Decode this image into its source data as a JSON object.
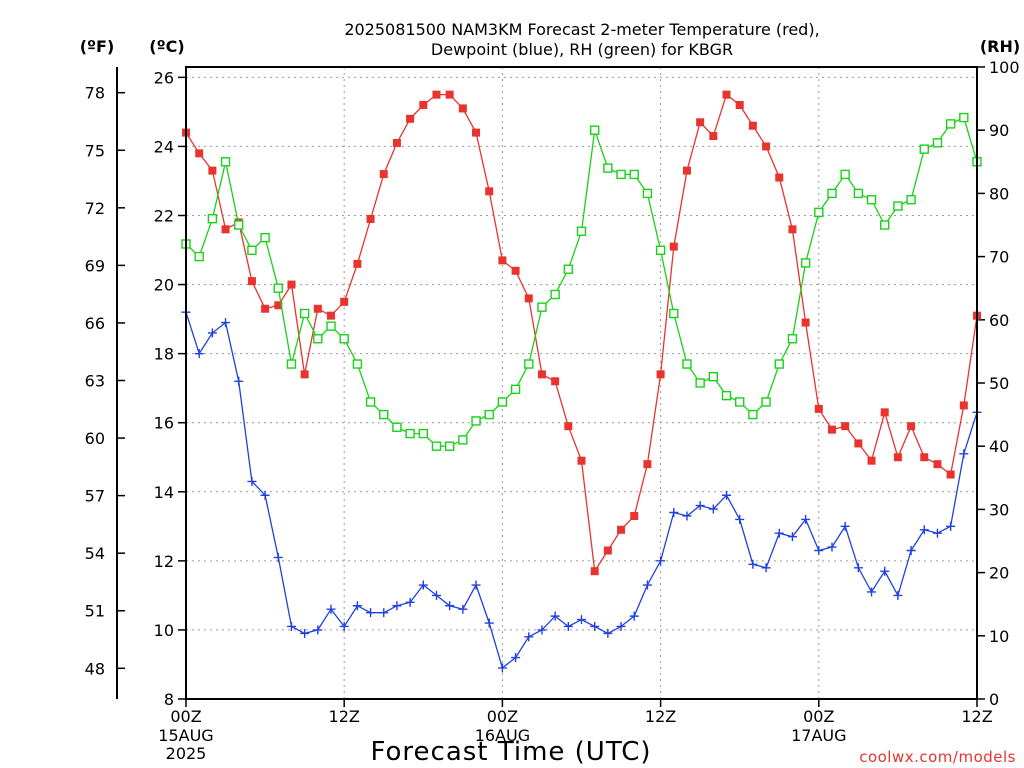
{
  "chart_data": {
    "type": "line",
    "title_line1": "2025081500 NAM3KM Forecast 2-meter Temperature (red),",
    "title_line2": "Dewpoint (blue), RH (green) for KBGR",
    "xlabel": "Forecast Time (UTC)",
    "credit": "coolwx.com/models",
    "unit_f": "(ºF)",
    "unit_c": "(ºC)",
    "unit_rh": "(RH)",
    "x_range": [
      0,
      60
    ],
    "c_range": [
      8,
      26.3
    ],
    "rh_range": [
      0,
      100
    ],
    "x_ticks": [
      {
        "hour": 0,
        "line1": "00Z",
        "line2": "15AUG",
        "line3": "2025"
      },
      {
        "hour": 12,
        "line1": "12Z",
        "line2": "",
        "line3": ""
      },
      {
        "hour": 24,
        "line1": "00Z",
        "line2": "16AUG",
        "line3": ""
      },
      {
        "hour": 36,
        "line1": "12Z",
        "line2": "",
        "line3": ""
      },
      {
        "hour": 48,
        "line1": "00Z",
        "line2": "17AUG",
        "line3": ""
      },
      {
        "hour": 60,
        "line1": "12Z",
        "line2": "",
        "line3": ""
      }
    ],
    "c_ticks": [
      "8",
      "10",
      "12",
      "14",
      "16",
      "18",
      "20",
      "22",
      "24",
      "26"
    ],
    "f_ticks": [
      {
        "label": "48",
        "f": 48
      },
      {
        "label": "51",
        "f": 51
      },
      {
        "label": "54",
        "f": 54
      },
      {
        "label": "57",
        "f": 57
      },
      {
        "label": "60",
        "f": 60
      },
      {
        "label": "63",
        "f": 63
      },
      {
        "label": "66",
        "f": 66
      },
      {
        "label": "69",
        "f": 69
      },
      {
        "label": "72",
        "f": 72
      },
      {
        "label": "75",
        "f": 75
      },
      {
        "label": "78",
        "f": 78
      }
    ],
    "rh_ticks": [
      "0",
      "10",
      "20",
      "30",
      "40",
      "50",
      "60",
      "70",
      "80",
      "90",
      "100"
    ],
    "series": [
      {
        "name": "Temperature",
        "color": "#e8332f",
        "marker": "filled-square",
        "axis": "c",
        "x": [
          0,
          1,
          2,
          3,
          4,
          5,
          6,
          7,
          8,
          9,
          10,
          11,
          12,
          13,
          14,
          15,
          16,
          17,
          18,
          19,
          20,
          21,
          22,
          23,
          24,
          25,
          26,
          27,
          28,
          29,
          30,
          31,
          32,
          33,
          34,
          35,
          36,
          37,
          38,
          39,
          40,
          41,
          42,
          43,
          44,
          45,
          46,
          47,
          48,
          49,
          50,
          51,
          52,
          53,
          54,
          55,
          56,
          57,
          58,
          59,
          60
        ],
        "values": [
          24.4,
          23.8,
          23.3,
          21.6,
          21.8,
          20.1,
          19.3,
          19.4,
          20.0,
          17.4,
          19.3,
          19.1,
          19.5,
          20.6,
          21.9,
          23.2,
          24.1,
          24.8,
          25.2,
          25.5,
          25.5,
          25.1,
          24.4,
          22.7,
          20.7,
          20.4,
          19.6,
          17.4,
          17.2,
          15.9,
          14.9,
          11.7,
          12.3,
          12.9,
          13.3,
          14.8,
          17.4,
          21.1,
          23.3,
          24.7,
          24.3,
          25.5,
          25.2,
          24.6,
          24.0,
          23.1,
          21.6,
          18.9,
          16.4,
          15.8,
          15.9,
          15.4,
          14.9,
          16.3,
          15.0,
          15.9,
          15.0,
          14.8,
          14.5,
          16.5,
          19.1
        ]
      },
      {
        "name": "Dewpoint",
        "color": "#2040e0",
        "marker": "plus",
        "axis": "c",
        "x": [
          0,
          1,
          2,
          3,
          4,
          5,
          6,
          7,
          8,
          9,
          10,
          11,
          12,
          13,
          14,
          15,
          16,
          17,
          18,
          19,
          20,
          21,
          22,
          23,
          24,
          25,
          26,
          27,
          28,
          29,
          30,
          31,
          32,
          33,
          34,
          35,
          36,
          37,
          38,
          39,
          40,
          41,
          42,
          43,
          44,
          45,
          46,
          47,
          48,
          49,
          50,
          51,
          52,
          53,
          54,
          55,
          56,
          57,
          58,
          59,
          60
        ],
        "values": [
          19.2,
          18.0,
          18.6,
          18.9,
          17.2,
          14.3,
          13.9,
          12.1,
          10.1,
          9.9,
          10.0,
          10.6,
          10.1,
          10.7,
          10.5,
          10.5,
          10.7,
          10.8,
          11.3,
          11.0,
          10.7,
          10.6,
          11.3,
          10.2,
          8.9,
          9.2,
          9.8,
          10.0,
          10.4,
          10.1,
          10.3,
          10.1,
          9.9,
          10.1,
          10.4,
          11.3,
          12.0,
          13.4,
          13.3,
          13.6,
          13.5,
          13.9,
          13.2,
          11.9,
          11.8,
          12.8,
          12.7,
          13.2,
          12.3,
          12.4,
          13.0,
          11.8,
          11.1,
          11.7,
          11.0,
          12.3,
          12.9,
          12.8,
          13.0,
          15.1,
          16.3
        ]
      },
      {
        "name": "RH",
        "color": "#19d119",
        "marker": "open-square",
        "axis": "rh",
        "x": [
          0,
          1,
          2,
          3,
          4,
          5,
          6,
          7,
          8,
          9,
          10,
          11,
          12,
          13,
          14,
          15,
          16,
          17,
          18,
          19,
          20,
          21,
          22,
          23,
          24,
          25,
          26,
          27,
          28,
          29,
          30,
          31,
          32,
          33,
          34,
          35,
          36,
          37,
          38,
          39,
          40,
          41,
          42,
          43,
          44,
          45,
          46,
          47,
          48,
          49,
          50,
          51,
          52,
          53,
          54,
          55,
          56,
          57,
          58,
          59,
          60
        ],
        "values": [
          72,
          70,
          76,
          85,
          75,
          71,
          73,
          65,
          53,
          61,
          57,
          59,
          57,
          53,
          47,
          45,
          43,
          42,
          42,
          40,
          40,
          41,
          44,
          45,
          47,
          49,
          53,
          62,
          64,
          68,
          74,
          90,
          84,
          83,
          83,
          80,
          71,
          61,
          53,
          50,
          51,
          48,
          47,
          45,
          47,
          53,
          57,
          69,
          77,
          80,
          83,
          80,
          79,
          75,
          78,
          79,
          87,
          88,
          91,
          92,
          85
        ]
      }
    ]
  }
}
